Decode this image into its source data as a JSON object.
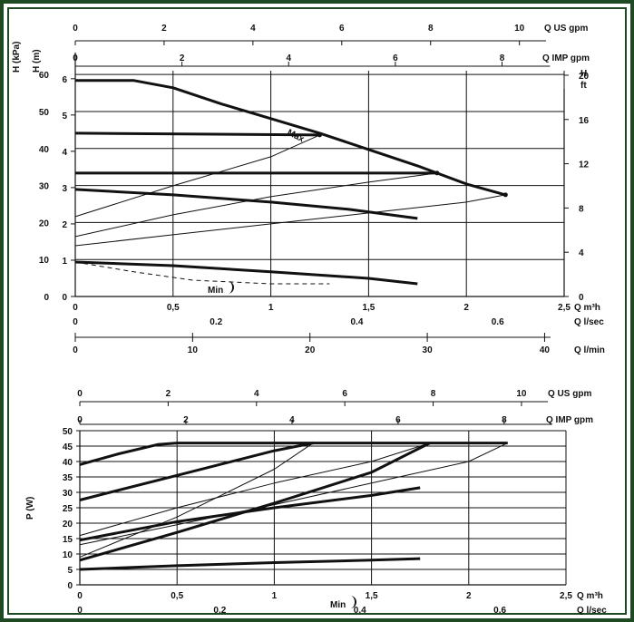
{
  "colors": {
    "border": "#1d4a22",
    "line": "#111111",
    "background": "#ffffff"
  },
  "chart_data": [
    {
      "type": "line",
      "title": "",
      "ylabel_kpa": "H (kPa)",
      "ylabel_m": "H (m)",
      "ylabel_ft": "H",
      "ylabel_ft_unit": "ft",
      "xlabel_m3h": "Q m³h",
      "ylim_m": [
        0,
        6.2
      ],
      "xlim_m3h": [
        0,
        2.5
      ],
      "grid": true,
      "axes_top": [
        {
          "label": "Q US gpm",
          "ticks": [
            "0",
            "2",
            "4",
            "6",
            "8",
            "10"
          ],
          "values": [
            0,
            2,
            4,
            6,
            8,
            10
          ]
        },
        {
          "label": "Q IMP gpm",
          "ticks": [
            "0",
            "2",
            "4",
            "6",
            "8"
          ],
          "values": [
            0,
            2,
            4,
            6,
            8
          ]
        }
      ],
      "axes_bottom": [
        {
          "label": "Q m³h",
          "ticks": [
            "0",
            "0,5",
            "1",
            "1,5",
            "2",
            "2,5"
          ],
          "values": [
            0,
            0.5,
            1,
            1.5,
            2,
            2.5
          ]
        },
        {
          "label": "Q l/sec",
          "ticks": [
            "0",
            "0.2",
            "0.4",
            "0.6"
          ],
          "values": [
            0,
            0.2,
            0.4,
            0.6
          ]
        },
        {
          "label": "Q l/min",
          "ticks": [
            "0",
            "10",
            "20",
            "30",
            "40"
          ],
          "values": [
            0,
            10,
            20,
            30,
            40
          ]
        }
      ],
      "y_left_kpa": {
        "ticks": [
          "0",
          "10",
          "20",
          "30",
          "40",
          "50",
          "60"
        ],
        "values": [
          0,
          10,
          20,
          30,
          40,
          50,
          60
        ]
      },
      "y_left_m": {
        "ticks": [
          "0",
          "1",
          "2",
          "3",
          "4",
          "5",
          "6"
        ],
        "values": [
          0,
          1,
          2,
          3,
          4,
          5,
          6
        ]
      },
      "y_right_ft": {
        "ticks": [
          "0",
          "4",
          "8",
          "12",
          "16",
          "20"
        ],
        "values": [
          0,
          4,
          8,
          12,
          16,
          20
        ]
      },
      "annotations": [
        "Max",
        "Min"
      ],
      "series": [
        {
          "style": "thick",
          "x": [
            0,
            0.3,
            0.5,
            0.75,
            1.0,
            1.25,
            1.5,
            1.75,
            2.0,
            2.2
          ],
          "y": [
            5.95,
            5.95,
            5.75,
            5.3,
            4.9,
            4.5,
            4.05,
            3.6,
            3.1,
            2.8
          ]
        },
        {
          "style": "thick",
          "x": [
            0,
            1.25
          ],
          "y": [
            4.5,
            4.45
          ]
        },
        {
          "style": "thick",
          "x": [
            0,
            1.85
          ],
          "y": [
            3.4,
            3.4
          ]
        },
        {
          "style": "thick",
          "x": [
            0,
            0.5,
            1.0,
            1.4,
            1.75
          ],
          "y": [
            2.95,
            2.8,
            2.6,
            2.4,
            2.15
          ]
        },
        {
          "style": "thick",
          "x": [
            0,
            0.5,
            1.0,
            1.5,
            1.75
          ],
          "y": [
            0.95,
            0.85,
            0.68,
            0.5,
            0.35
          ]
        },
        {
          "style": "thin",
          "x": [
            0,
            0.5,
            1.0,
            1.25
          ],
          "y": [
            2.2,
            3.05,
            3.85,
            4.45
          ]
        },
        {
          "style": "thin",
          "x": [
            0,
            0.5,
            1.0,
            1.5,
            1.85
          ],
          "y": [
            1.65,
            2.25,
            2.75,
            3.15,
            3.4
          ]
        },
        {
          "style": "thin",
          "x": [
            0,
            0.5,
            1.0,
            1.5,
            2.0,
            2.2
          ],
          "y": [
            1.4,
            1.7,
            2.0,
            2.3,
            2.6,
            2.8
          ]
        },
        {
          "style": "dashed",
          "x": [
            0,
            0.3,
            0.6,
            1.0,
            1.3
          ],
          "y": [
            0.95,
            0.68,
            0.45,
            0.35,
            0.35
          ]
        }
      ],
      "markers": [
        {
          "x": 1.25,
          "y": 4.45
        },
        {
          "x": 1.85,
          "y": 3.4
        },
        {
          "x": 2.2,
          "y": 2.8
        }
      ]
    },
    {
      "type": "line",
      "title": "",
      "ylabel": "P (W)",
      "xlabel_m3h": "Q m³h",
      "ylim": [
        0,
        50
      ],
      "xlim_m3h": [
        0,
        2.5
      ],
      "grid": true,
      "axes_top": [
        {
          "label": "Q US gpm",
          "ticks": [
            "0",
            "2",
            "4",
            "6",
            "8",
            "10"
          ],
          "values": [
            0,
            2,
            4,
            6,
            8,
            10
          ]
        },
        {
          "label": "Q IMP gpm",
          "ticks": [
            "0",
            "2",
            "4",
            "6",
            "8"
          ],
          "values": [
            0,
            2,
            4,
            6,
            8
          ]
        }
      ],
      "axes_bottom": [
        {
          "label": "Q m³h",
          "ticks": [
            "0",
            "0,5",
            "1",
            "1,5",
            "2",
            "2,5"
          ],
          "values": [
            0,
            0.5,
            1,
            1.5,
            2,
            2.5
          ]
        },
        {
          "label": "Q l/sec",
          "ticks": [
            "0",
            "0.2",
            "0.4",
            "0.6"
          ],
          "values": [
            0,
            0.2,
            0.4,
            0.6
          ]
        }
      ],
      "y_left": {
        "ticks": [
          "0",
          "5",
          "10",
          "15",
          "20",
          "25",
          "30",
          "35",
          "40",
          "45",
          "50"
        ],
        "values": [
          0,
          5,
          10,
          15,
          20,
          25,
          30,
          35,
          40,
          45,
          50
        ]
      },
      "annotations": [
        "Min"
      ],
      "series": [
        {
          "style": "thick",
          "x": [
            0,
            0.2,
            0.4,
            0.5,
            1.0,
            1.5,
            2.0,
            2.2
          ],
          "y": [
            39,
            42.5,
            45.5,
            46,
            46,
            46,
            46,
            46
          ]
        },
        {
          "style": "thick",
          "x": [
            0,
            0.5,
            1.0,
            1.2
          ],
          "y": [
            27.5,
            35.5,
            43.5,
            46
          ]
        },
        {
          "style": "thick",
          "x": [
            0,
            0.5,
            1.0,
            1.5,
            1.8
          ],
          "y": [
            8,
            17,
            26.5,
            36.5,
            46
          ]
        },
        {
          "style": "thick",
          "x": [
            0,
            0.5,
            1.0,
            1.5,
            1.75
          ],
          "y": [
            14.5,
            20.5,
            25,
            29,
            31.5
          ]
        },
        {
          "style": "thick",
          "x": [
            0,
            0.5,
            1.0,
            1.5,
            1.75
          ],
          "y": [
            5,
            6.2,
            7.2,
            8,
            8.5
          ]
        },
        {
          "style": "thin",
          "x": [
            0,
            0.5,
            1.0,
            1.2
          ],
          "y": [
            9,
            22,
            37.5,
            46
          ]
        },
        {
          "style": "thin",
          "x": [
            0,
            0.5,
            1.0,
            1.5,
            1.8
          ],
          "y": [
            16,
            25,
            33,
            40,
            46
          ]
        },
        {
          "style": "thin",
          "x": [
            0,
            0.5,
            1.0,
            1.5,
            2.0,
            2.2
          ],
          "y": [
            13,
            19.5,
            26,
            33,
            40,
            46
          ]
        },
        {
          "style": "dashed",
          "x": [
            0,
            0.6,
            1.3
          ],
          "y": [
            5,
            5,
            5
          ]
        }
      ]
    }
  ]
}
